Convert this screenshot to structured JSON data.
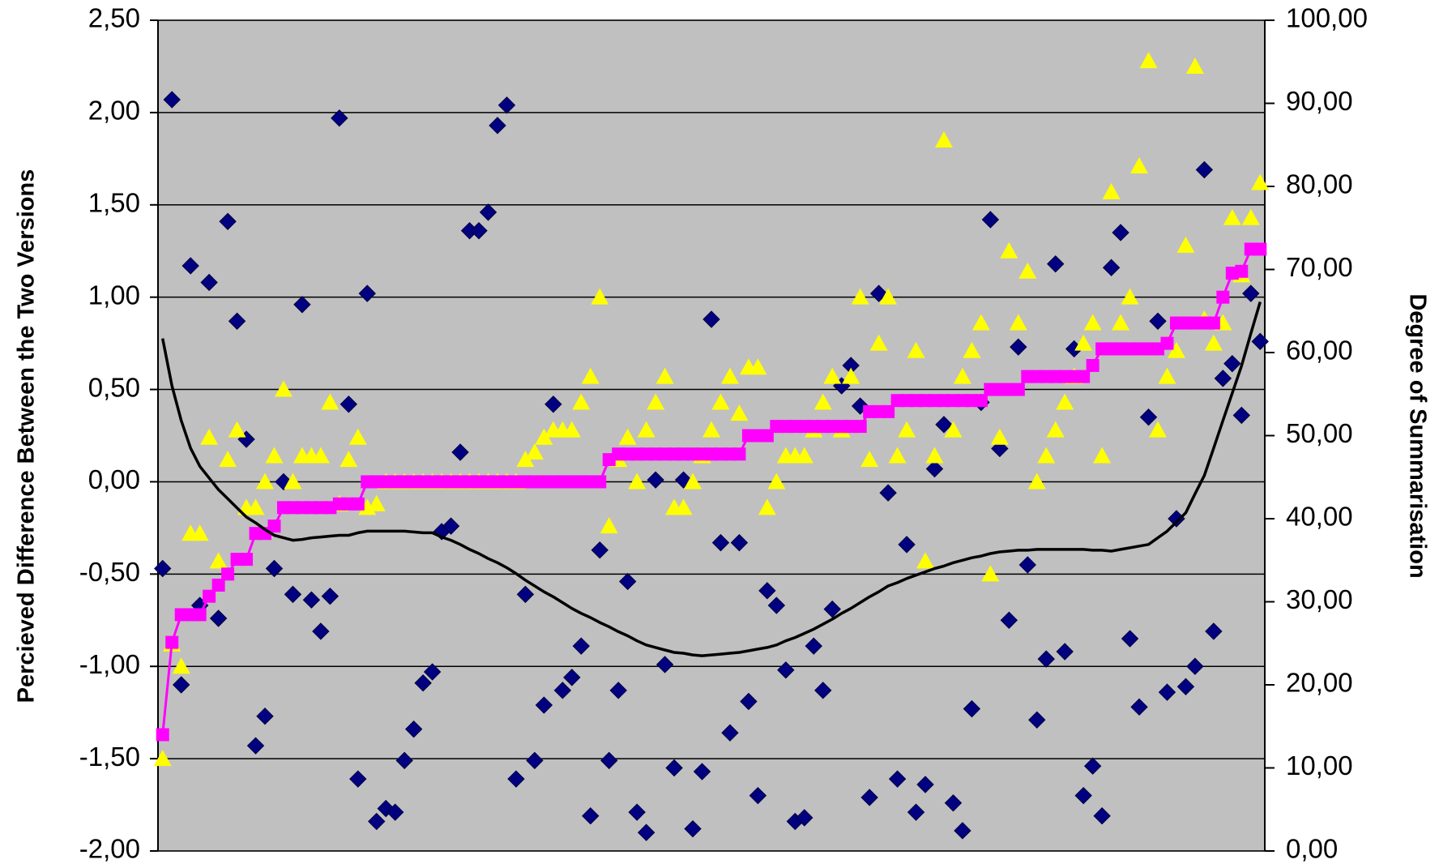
{
  "chart_data": {
    "type": "combo",
    "y_label": "Percieved Difference Between the Two Versions",
    "y2_label": "Degree of Summarisation",
    "ylim": [
      -2,
      2.5
    ],
    "yticks": [
      {
        "value": -2,
        "label": "-2,00"
      },
      {
        "value": -1.5,
        "label": "-1,50"
      },
      {
        "value": -1,
        "label": "-1,00"
      },
      {
        "value": -0.5,
        "label": "-0,50"
      },
      {
        "value": 0,
        "label": "0,00"
      },
      {
        "value": 0.5,
        "label": "0,50"
      },
      {
        "value": 1,
        "label": "1,00"
      },
      {
        "value": 1.5,
        "label": "1,50"
      },
      {
        "value": 2,
        "label": "2,00"
      },
      {
        "value": 2.5,
        "label": "2,50"
      }
    ],
    "y2lim": [
      0,
      100
    ],
    "y2ticks": [
      {
        "value": 0,
        "label": "0,00"
      },
      {
        "value": 10,
        "label": "10,00"
      },
      {
        "value": 20,
        "label": "20,00"
      },
      {
        "value": 30,
        "label": "30,00"
      },
      {
        "value": 40,
        "label": "40,00"
      },
      {
        "value": 50,
        "label": "50,00"
      },
      {
        "value": 60,
        "label": "60,00"
      },
      {
        "value": 70,
        "label": "70,00"
      },
      {
        "value": 80,
        "label": "80,00"
      },
      {
        "value": 90,
        "label": "90,00"
      },
      {
        "value": 100,
        "label": "100,00"
      }
    ],
    "grid": true,
    "background": "#c0c0c0",
    "categories": [
      null,
      null,
      null,
      null,
      null,
      null,
      null,
      null,
      null,
      null,
      null,
      null,
      null,
      null,
      null,
      null,
      null,
      null,
      null,
      null,
      null,
      null,
      null,
      null,
      null,
      null,
      null,
      null,
      null,
      null,
      null,
      null,
      null,
      null,
      null,
      null,
      null,
      null,
      null,
      null,
      null,
      null,
      null,
      null,
      null,
      null,
      null,
      null,
      null,
      null,
      null,
      null,
      null,
      null,
      null,
      null,
      null,
      null,
      null,
      null,
      null,
      null,
      null,
      null,
      null,
      null,
      null,
      null,
      null,
      null,
      null,
      null,
      null,
      null,
      null,
      null,
      null,
      null,
      null,
      null,
      null,
      null,
      null,
      null,
      null,
      null,
      null,
      null,
      null,
      null,
      null,
      null,
      null,
      null,
      null,
      null,
      null,
      null,
      null,
      null,
      null,
      null,
      null,
      null,
      null,
      null,
      null,
      null,
      null,
      null,
      null,
      null,
      null,
      null,
      null,
      null,
      null,
      null,
      null
    ],
    "series": [
      {
        "type": "scatter",
        "marker": "diamond",
        "color": "#000080",
        "values": [
          -0.47,
          2.07,
          -1.1,
          1.17,
          -0.67,
          1.08,
          -0.74,
          1.41,
          0.87,
          0.23,
          -1.43,
          -1.27,
          -0.47,
          0.0,
          -0.61,
          0.96,
          -0.64,
          -0.81,
          -0.62,
          1.97,
          0.42,
          -1.61,
          1.02,
          -1.84,
          -1.77,
          -1.79,
          -1.51,
          -1.34,
          -1.09,
          -1.03,
          -0.27,
          -0.24,
          0.16,
          1.36,
          1.36,
          1.46,
          1.93,
          2.04,
          -1.61,
          -0.61,
          -1.51,
          -1.21,
          0.42,
          -1.13,
          -1.06,
          -0.89,
          -1.81,
          -0.37,
          -1.51,
          -1.13,
          -0.54,
          -1.79,
          -1.9,
          0.01,
          -0.99,
          -1.55,
          0.01,
          -1.88,
          -1.57,
          0.88,
          -0.33,
          -1.36,
          -0.33,
          -1.19,
          -1.7,
          -0.59,
          -0.67,
          -1.02,
          -1.84,
          -1.82,
          -0.89,
          -1.13,
          -0.69,
          0.52,
          0.63,
          0.41,
          -1.71,
          1.02,
          -0.06,
          -1.61,
          -0.34,
          -1.79,
          -1.64,
          0.07,
          0.31,
          -1.74,
          -1.89,
          -1.23,
          0.43,
          1.42,
          0.18,
          -0.75,
          0.73,
          -0.45,
          -1.29,
          -0.96,
          1.18,
          -0.92,
          0.72,
          -1.7,
          -1.54,
          -1.81,
          1.16,
          1.35,
          -0.85,
          -1.22,
          0.35,
          0.87,
          -1.14,
          -0.2,
          -1.11,
          -1.0,
          1.69,
          -0.81,
          0.56,
          0.64,
          0.36,
          1.02,
          0.76
        ]
      },
      {
        "type": "scatter",
        "marker": "triangle",
        "color": "#ffff00",
        "values": [
          -1.5,
          -0.88,
          -1.0,
          -0.28,
          -0.28,
          0.24,
          -0.43,
          0.12,
          0.28,
          -0.14,
          -0.14,
          0.0,
          0.14,
          0.5,
          0.0,
          0.14,
          0.14,
          0.14,
          0.43,
          -0.12,
          0.12,
          0.24,
          -0.14,
          -0.12,
          0.0,
          0.0,
          0.0,
          0.0,
          0.0,
          0.0,
          0.0,
          0.0,
          0.0,
          0.0,
          0.0,
          0.0,
          0.0,
          0.0,
          0.0,
          0.12,
          0.16,
          0.24,
          0.28,
          0.28,
          0.28,
          0.43,
          0.57,
          1.0,
          -0.24,
          0.12,
          0.24,
          0.0,
          0.28,
          0.43,
          0.57,
          -0.14,
          -0.14,
          0.0,
          0.14,
          0.28,
          0.43,
          0.57,
          0.37,
          0.62,
          0.62,
          -0.14,
          0.0,
          0.14,
          0.14,
          0.14,
          0.28,
          0.43,
          0.57,
          0.28,
          0.57,
          1.0,
          0.12,
          0.75,
          1.0,
          0.14,
          0.28,
          0.71,
          -0.43,
          0.14,
          1.85,
          0.28,
          0.57,
          0.71,
          0.86,
          -0.5,
          0.24,
          1.25,
          0.86,
          1.14,
          0.0,
          0.14,
          0.28,
          0.43,
          0.57,
          0.75,
          0.86,
          0.14,
          1.57,
          0.86,
          1.0,
          1.71,
          2.28,
          0.28,
          0.57,
          0.71,
          1.28,
          2.25,
          0.88,
          0.75,
          0.86,
          1.43,
          1.12,
          1.43,
          1.62
        ]
      },
      {
        "type": "line",
        "marker": "square",
        "color": "#ff00ff",
        "values": [
          -1.37,
          -0.87,
          -0.72,
          -0.72,
          -0.72,
          -0.62,
          -0.56,
          -0.5,
          -0.42,
          -0.42,
          -0.28,
          -0.28,
          -0.24,
          -0.14,
          -0.14,
          -0.14,
          -0.14,
          -0.14,
          -0.14,
          -0.12,
          -0.12,
          -0.12,
          0.0,
          0.0,
          0.0,
          0.0,
          0.0,
          0.0,
          0.0,
          0.0,
          0.0,
          0.0,
          0.0,
          0.0,
          0.0,
          0.0,
          0.0,
          0.0,
          0.0,
          0.0,
          0.0,
          0.0,
          0.0,
          0.0,
          0.0,
          0.0,
          0.0,
          0.0,
          0.12,
          0.15,
          0.15,
          0.15,
          0.15,
          0.15,
          0.15,
          0.15,
          0.15,
          0.15,
          0.15,
          0.15,
          0.15,
          0.15,
          0.15,
          0.25,
          0.25,
          0.25,
          0.3,
          0.3,
          0.3,
          0.3,
          0.3,
          0.3,
          0.3,
          0.3,
          0.3,
          0.3,
          0.38,
          0.38,
          0.38,
          0.44,
          0.44,
          0.44,
          0.44,
          0.44,
          0.44,
          0.44,
          0.44,
          0.44,
          0.44,
          0.5,
          0.5,
          0.5,
          0.5,
          0.57,
          0.57,
          0.57,
          0.57,
          0.57,
          0.57,
          0.57,
          0.63,
          0.72,
          0.72,
          0.72,
          0.72,
          0.72,
          0.72,
          0.72,
          0.75,
          0.86,
          0.86,
          0.86,
          0.86,
          0.86,
          1.0,
          1.13,
          1.14,
          1.26,
          1.26
        ]
      },
      {
        "type": "line",
        "marker": "none",
        "color": "#000000",
        "axis": "y2",
        "values": [
          61.7,
          56.0,
          51.8,
          48.5,
          46.3,
          44.9,
          43.5,
          42.4,
          41.3,
          40.2,
          39.5,
          38.7,
          38.0,
          37.7,
          37.4,
          37.5,
          37.7,
          37.8,
          37.9,
          38.0,
          38.0,
          38.3,
          38.5,
          38.5,
          38.5,
          38.5,
          38.5,
          38.4,
          38.3,
          38.3,
          37.8,
          37.4,
          36.9,
          36.3,
          35.8,
          35.2,
          34.7,
          34.1,
          33.4,
          32.6,
          31.9,
          31.2,
          30.6,
          29.9,
          29.2,
          28.6,
          28.1,
          27.5,
          27.0,
          26.4,
          25.9,
          25.3,
          24.8,
          24.5,
          24.2,
          23.9,
          23.8,
          23.6,
          23.5,
          23.6,
          23.7,
          23.8,
          23.9,
          24.1,
          24.3,
          24.5,
          24.8,
          25.3,
          25.7,
          26.2,
          26.7,
          27.3,
          27.9,
          28.6,
          29.2,
          29.9,
          30.6,
          31.2,
          31.9,
          32.3,
          32.8,
          33.2,
          33.6,
          34.0,
          34.3,
          34.7,
          35.0,
          35.3,
          35.5,
          35.8,
          36.0,
          36.1,
          36.2,
          36.2,
          36.3,
          36.3,
          36.3,
          36.3,
          36.3,
          36.3,
          36.2,
          36.2,
          36.1,
          36.3,
          36.5,
          36.7,
          36.9,
          37.7,
          38.5,
          39.6,
          40.7,
          43.0,
          45.2,
          48.5,
          51.8,
          55.1,
          58.4,
          62.3,
          66.1
        ]
      }
    ]
  }
}
